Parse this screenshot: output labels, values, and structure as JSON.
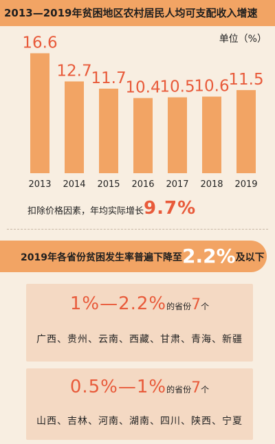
{
  "title": "2013—2019年贫困地区农村居民人均可支配收入增速",
  "unit": "单位（%）",
  "chart_data": {
    "type": "bar",
    "categories": [
      "2013",
      "2014",
      "2015",
      "2016",
      "2017",
      "2018",
      "2019"
    ],
    "values": [
      16.6,
      12.7,
      11.7,
      10.4,
      10.5,
      10.6,
      11.5
    ],
    "ylim": [
      0,
      17.5
    ],
    "bar_color": "#f2a464",
    "label_color": "#e85a3a",
    "grid": false,
    "legend": "none"
  },
  "note": {
    "text": "扣除价格因素，年均实际增长",
    "value": "9.7%"
  },
  "section2": {
    "prefix": "2019年各省份贫困发生率普遍下降至",
    "value": "2.2%",
    "suffix": "及以下"
  },
  "groups": [
    {
      "range": "1%—2.2%",
      "mid": "的省份",
      "count": "7",
      "unit": "个",
      "provinces": "广西、贵州、云南、西藏、甘肃、青海、新疆"
    },
    {
      "range": "0.5%—1%",
      "mid": "的省份",
      "count": "7",
      "unit": "个",
      "provinces": "山西、吉林、河南、湖南、四川、陕西、宁夏"
    }
  ],
  "colors": {
    "accent": "#e85a3a",
    "orange": "#f2a464",
    "background": "#f8eee1",
    "card": "#f4d9c3"
  }
}
